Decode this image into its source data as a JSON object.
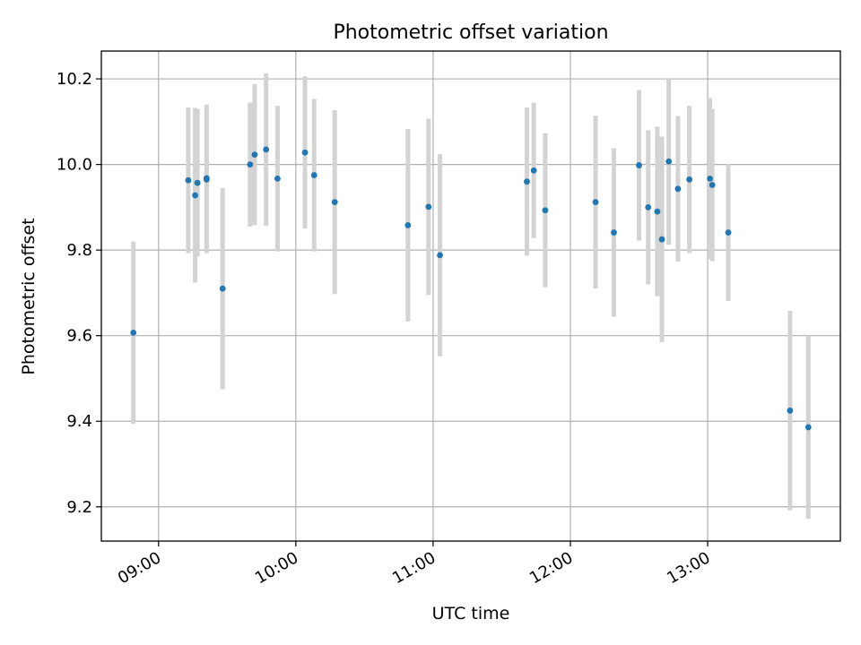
{
  "chart_data": {
    "type": "scatter",
    "title": "Photometric offset variation",
    "xlabel": "UTC time",
    "ylabel": "Photometric offset",
    "xlim": [
      "08:35",
      "13:58"
    ],
    "ylim": [
      9.12,
      10.265
    ],
    "x_ticks": [
      "09:00",
      "10:00",
      "11:00",
      "12:00",
      "13:00"
    ],
    "y_ticks": [
      9.2,
      9.4,
      9.6,
      9.8,
      10.0,
      10.2
    ],
    "grid": true,
    "colors": {
      "point": "#1f77b4",
      "errorbar": "#d3d3d3",
      "grid": "#b0b0b0"
    },
    "points": [
      {
        "x": "08:49",
        "y": 9.607,
        "err": 0.213
      },
      {
        "x": "09:13",
        "y": 9.963,
        "err": 0.17
      },
      {
        "x": "09:16",
        "y": 9.928,
        "err": 0.204
      },
      {
        "x": "09:17",
        "y": 9.957,
        "err": 0.172
      },
      {
        "x": "09:21",
        "y": 9.968,
        "err": 0.172
      },
      {
        "x": "09:21",
        "y": 9.965,
        "err": 0.172
      },
      {
        "x": "09:28",
        "y": 9.71,
        "err": 0.235
      },
      {
        "x": "09:40",
        "y": 10.0,
        "err": 0.145
      },
      {
        "x": "09:42",
        "y": 10.023,
        "err": 0.165
      },
      {
        "x": "09:47",
        "y": 10.035,
        "err": 0.178
      },
      {
        "x": "09:52",
        "y": 9.967,
        "err": 0.17
      },
      {
        "x": "10:04",
        "y": 10.028,
        "err": 0.178
      },
      {
        "x": "10:08",
        "y": 9.975,
        "err": 0.178
      },
      {
        "x": "10:17",
        "y": 9.912,
        "err": 0.215
      },
      {
        "x": "10:49",
        "y": 9.858,
        "err": 0.225
      },
      {
        "x": "10:58",
        "y": 9.901,
        "err": 0.206
      },
      {
        "x": "11:03",
        "y": 9.788,
        "err": 0.236
      },
      {
        "x": "11:41",
        "y": 9.96,
        "err": 0.173
      },
      {
        "x": "11:44",
        "y": 9.986,
        "err": 0.158
      },
      {
        "x": "11:49",
        "y": 9.893,
        "err": 0.18
      },
      {
        "x": "12:11",
        "y": 9.912,
        "err": 0.202
      },
      {
        "x": "12:19",
        "y": 9.841,
        "err": 0.197
      },
      {
        "x": "12:30",
        "y": 9.998,
        "err": 0.176
      },
      {
        "x": "12:34",
        "y": 9.9,
        "err": 0.18
      },
      {
        "x": "12:38",
        "y": 9.89,
        "err": 0.198
      },
      {
        "x": "12:40",
        "y": 9.825,
        "err": 0.24
      },
      {
        "x": "12:43",
        "y": 10.007,
        "err": 0.195
      },
      {
        "x": "12:47",
        "y": 9.943,
        "err": 0.17
      },
      {
        "x": "12:52",
        "y": 9.965,
        "err": 0.172
      },
      {
        "x": "13:01",
        "y": 9.967,
        "err": 0.188
      },
      {
        "x": "13:02",
        "y": 9.952,
        "err": 0.178
      },
      {
        "x": "13:09",
        "y": 9.841,
        "err": 0.16
      },
      {
        "x": "13:36",
        "y": 9.425,
        "err": 0.233
      },
      {
        "x": "13:44",
        "y": 9.386,
        "err": 0.214
      }
    ]
  }
}
